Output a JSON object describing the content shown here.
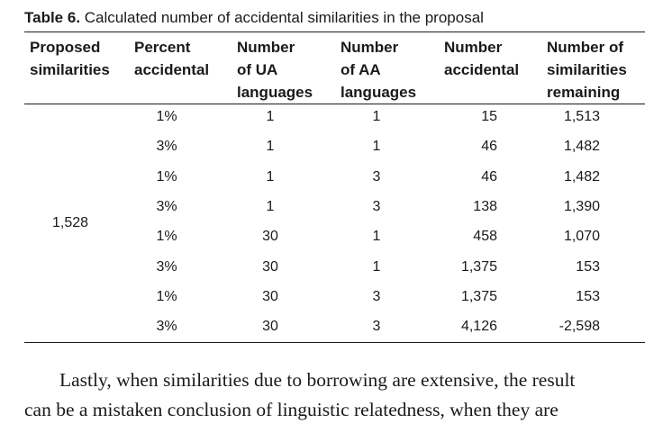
{
  "table": {
    "caption_label": "Table 6.",
    "caption_text": " Calculated number of accidental similarities in the proposal",
    "headers": [
      [
        "Proposed",
        "similarities"
      ],
      [
        "Percent",
        "accidental"
      ],
      [
        "Number",
        "of UA",
        "languages"
      ],
      [
        "Number",
        "of AA",
        "languages"
      ],
      [
        "Number",
        "accidental"
      ],
      [
        "Number of",
        "similarities",
        "remaining"
      ]
    ],
    "proposed_similarities": "1,528",
    "rows": [
      [
        "1%",
        "1",
        "1",
        "15",
        "1,513"
      ],
      [
        "3%",
        "1",
        "1",
        "46",
        "1,482"
      ],
      [
        "1%",
        "1",
        "3",
        "46",
        "1,482"
      ],
      [
        "3%",
        "1",
        "3",
        "138",
        "1,390"
      ],
      [
        "1%",
        "30",
        "1",
        "458",
        "1,070"
      ],
      [
        "3%",
        "30",
        "1",
        "1,375",
        "153"
      ],
      [
        "1%",
        "30",
        "3",
        "1,375",
        "153"
      ],
      [
        "3%",
        "30",
        "3",
        "4,126",
        "-2,598"
      ]
    ]
  },
  "paragraph": {
    "line1": "Lastly, when similarities due to borrowing are extensive, the result",
    "line2": "can be a mistaken conclusion of linguistic relatedness, when they are"
  }
}
